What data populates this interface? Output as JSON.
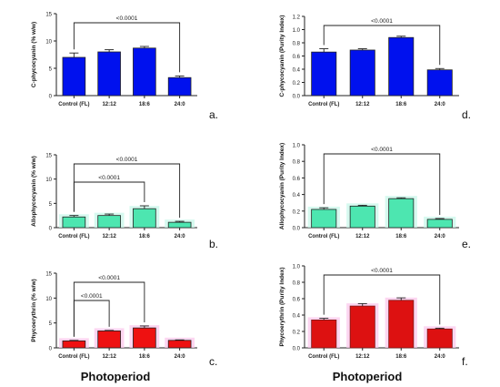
{
  "xlabel": "Photoperiod",
  "chart_data": [
    {
      "type": "bar",
      "panel_letter": "a.",
      "ylabel": "C-phycocyanin (% w/w)",
      "ylim": [
        0,
        15
      ],
      "yticks": [
        0,
        5,
        10,
        15
      ],
      "ytick_labels": [
        "0",
        "5",
        "10",
        "15"
      ],
      "categories": [
        "Control (FL)",
        "12:12",
        "18:6",
        "24:0"
      ],
      "values": [
        7.0,
        8.0,
        8.7,
        3.3
      ],
      "errors": [
        0.8,
        0.4,
        0.3,
        0.3
      ],
      "bar_color": "#0011ee",
      "glow_color": null,
      "significance": [
        {
          "from": 0,
          "to": 3,
          "label": "<0.0001"
        }
      ]
    },
    {
      "type": "bar",
      "panel_letter": "d.",
      "ylabel": "C-phycocyanin (Purity Index)",
      "ylim": [
        0,
        1.2
      ],
      "yticks": [
        0,
        0.2,
        0.4,
        0.6,
        0.8,
        1.0,
        1.2
      ],
      "ytick_labels": [
        "0.0",
        "0.2",
        "0.4",
        "0.6",
        "0.8",
        "1.0",
        "1.2"
      ],
      "categories": [
        "Control (FL)",
        "12:12",
        "18:6",
        "24:0"
      ],
      "values": [
        0.66,
        0.69,
        0.88,
        0.39
      ],
      "errors": [
        0.05,
        0.02,
        0.02,
        0.02
      ],
      "bar_color": "#0011ee",
      "glow_color": null,
      "significance": [
        {
          "from": 0,
          "to": 3,
          "label": "<0.0001"
        }
      ]
    },
    {
      "type": "bar",
      "panel_letter": "b.",
      "ylabel": "Allophycocyanin (% w/w)",
      "ylim": [
        0,
        15
      ],
      "yticks": [
        0,
        5,
        10,
        15
      ],
      "ytick_labels": [
        "0",
        "5",
        "10",
        "15"
      ],
      "categories": [
        "Control (FL)",
        "12:12",
        "18:6",
        "24:0"
      ],
      "values": [
        2.2,
        2.5,
        3.9,
        1.1
      ],
      "errors": [
        0.3,
        0.3,
        0.6,
        0.2
      ],
      "bar_color": "#4de6b0",
      "glow_color": "#c8f7ea",
      "significance": [
        {
          "from": 0,
          "to": 2,
          "label": "<0.0001"
        },
        {
          "from": 0,
          "to": 3,
          "label": "<0.0001"
        }
      ]
    },
    {
      "type": "bar",
      "panel_letter": "e.",
      "ylabel": "Allophycocyanin (Purity Index)",
      "ylim": [
        0,
        1.0
      ],
      "yticks": [
        0,
        0.2,
        0.4,
        0.6,
        0.8,
        1.0
      ],
      "ytick_labels": [
        "0.0",
        "0.2",
        "0.4",
        "0.6",
        "0.8",
        "1.0"
      ],
      "categories": [
        "Control (FL)",
        "12:12",
        "18:6",
        "24:0"
      ],
      "values": [
        0.22,
        0.26,
        0.35,
        0.1
      ],
      "errors": [
        0.02,
        0.01,
        0.01,
        0.01
      ],
      "bar_color": "#4de6b0",
      "glow_color": "#c8f7ea",
      "significance": [
        {
          "from": 0,
          "to": 3,
          "label": "<0.0001"
        }
      ]
    },
    {
      "type": "bar",
      "panel_letter": "c.",
      "ylabel": "Phycoerythrin (% w/w)",
      "ylim": [
        0,
        15
      ],
      "yticks": [
        0,
        5,
        10,
        15
      ],
      "ytick_labels": [
        "0",
        "5",
        "10",
        "15"
      ],
      "categories": [
        "Control (FL)",
        "12:12",
        "18:6",
        "24:0"
      ],
      "values": [
        1.4,
        3.4,
        4.0,
        1.5
      ],
      "errors": [
        0.1,
        0.1,
        0.4,
        0.1
      ],
      "bar_color": "#ee1111",
      "glow_color": "#fbc8ec",
      "significance": [
        {
          "from": 0,
          "to": 1,
          "label": "<0.0001"
        },
        {
          "from": 0,
          "to": 2,
          "label": "<0.0001"
        }
      ]
    },
    {
      "type": "bar",
      "panel_letter": "f.",
      "ylabel": "Phycoerythrin (Purity Index)",
      "ylim": [
        0,
        1.0
      ],
      "yticks": [
        0,
        0.2,
        0.4,
        0.6,
        0.8,
        1.0
      ],
      "ytick_labels": [
        "0.0",
        "0.2",
        "0.4",
        "0.6",
        "0.8",
        "1.0"
      ],
      "categories": [
        "Control (FL)",
        "12:12",
        "18:6",
        "24:0"
      ],
      "values": [
        0.34,
        0.51,
        0.58,
        0.23
      ],
      "errors": [
        0.02,
        0.03,
        0.03,
        0.01
      ],
      "bar_color": "#dd1111",
      "bar_edge": "#7a1a1a",
      "glow_color": "#fbc8ec",
      "significance": [
        {
          "from": 0,
          "to": 3,
          "label": "<0.0001"
        }
      ]
    }
  ]
}
